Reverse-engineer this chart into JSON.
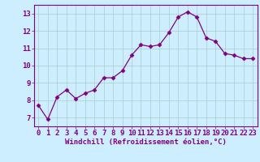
{
  "x": [
    0,
    1,
    2,
    3,
    4,
    5,
    6,
    7,
    8,
    9,
    10,
    11,
    12,
    13,
    14,
    15,
    16,
    17,
    18,
    19,
    20,
    21,
    22,
    23
  ],
  "y": [
    7.7,
    6.9,
    8.2,
    8.6,
    8.1,
    8.4,
    8.6,
    9.3,
    9.3,
    9.7,
    10.6,
    11.2,
    11.1,
    11.2,
    11.9,
    12.8,
    13.1,
    12.8,
    11.6,
    11.4,
    10.7,
    10.6,
    10.4,
    10.4
  ],
  "line_color": "#800080",
  "marker": "D",
  "marker_size": 2.5,
  "bg_color": "#cceeff",
  "grid_color": "#aacccc",
  "xlabel": "Windchill (Refroidissement éolien,°C)",
  "ylim": [
    6.5,
    13.5
  ],
  "xlim": [
    -0.5,
    23.5
  ],
  "yticks": [
    7,
    8,
    9,
    10,
    11,
    12,
    13
  ],
  "xticks": [
    0,
    1,
    2,
    3,
    4,
    5,
    6,
    7,
    8,
    9,
    10,
    11,
    12,
    13,
    14,
    15,
    16,
    17,
    18,
    19,
    20,
    21,
    22,
    23
  ],
  "label_color": "#800080",
  "tick_color": "#800080",
  "font_size_label": 6.5,
  "font_size_tick": 6.5
}
